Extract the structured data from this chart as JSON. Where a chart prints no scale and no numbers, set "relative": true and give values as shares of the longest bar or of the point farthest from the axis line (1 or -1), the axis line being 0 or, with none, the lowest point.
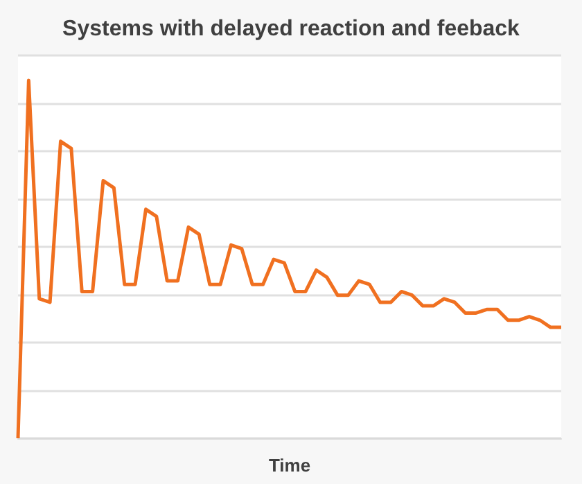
{
  "chart_data": {
    "type": "line",
    "title": "Systems with delayed reaction and feeback",
    "xlabel": "Time",
    "relative": true,
    "grid": "y",
    "marker": "none",
    "line_style": "solid",
    "categories": [
      null,
      null,
      null,
      null,
      null,
      null,
      null,
      null,
      null,
      null,
      null,
      null,
      null,
      null,
      null,
      null,
      null,
      null,
      null,
      null,
      null,
      null,
      null,
      null,
      null,
      null,
      null,
      null,
      null,
      null,
      null,
      null,
      null,
      null,
      null,
      null,
      null,
      null,
      null,
      null,
      null,
      null,
      null,
      null,
      null,
      null,
      null,
      null,
      null,
      null,
      null,
      null
    ],
    "series": [
      {
        "color": "#f07020",
        "values": [
          0,
          1,
          0.39,
          0.38,
          0.83,
          0.81,
          0.41,
          0.41,
          0.72,
          0.7,
          0.43,
          0.43,
          0.64,
          0.62,
          0.44,
          0.44,
          0.59,
          0.57,
          0.43,
          0.43,
          0.54,
          0.53,
          0.43,
          0.43,
          0.5,
          0.49,
          0.41,
          0.41,
          0.47,
          0.45,
          0.4,
          0.4,
          0.44,
          0.43,
          0.38,
          0.38,
          0.41,
          0.4,
          0.37,
          0.37,
          0.39,
          0.38,
          0.35,
          0.35,
          0.36,
          0.36,
          0.33,
          0.33,
          0.34,
          0.33,
          0.31,
          0.31
        ]
      }
    ]
  }
}
